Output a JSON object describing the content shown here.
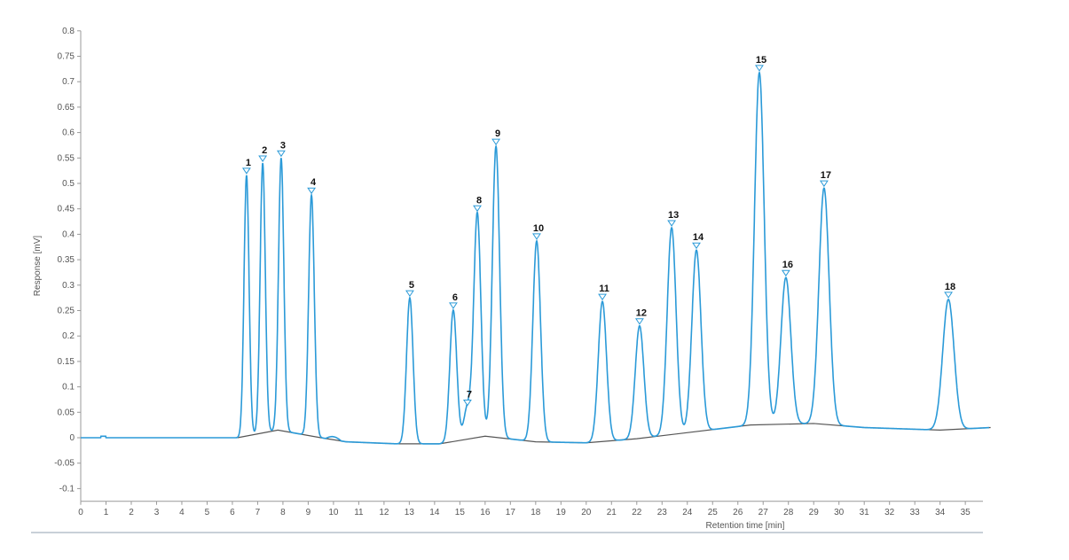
{
  "chart_data": {
    "type": "line",
    "title": "",
    "xlabel": "Retention time [min]",
    "ylabel": "Response [mV]",
    "xlim": [
      0,
      36
    ],
    "ylim": [
      -0.125,
      0.8
    ],
    "x_ticks": [
      0,
      1,
      2,
      3,
      4,
      5,
      6,
      7,
      8,
      9,
      10,
      11,
      12,
      13,
      14,
      15,
      16,
      17,
      18,
      19,
      20,
      21,
      22,
      23,
      24,
      25,
      26,
      27,
      28,
      29,
      30,
      31,
      32,
      33,
      34,
      35,
      36
    ],
    "y_ticks": [
      -0.1,
      -0.05,
      0,
      0.05,
      0.1,
      0.15,
      0.2,
      0.25,
      0.3,
      0.35,
      0.4,
      0.45,
      0.5,
      0.55,
      0.6,
      0.65,
      0.7,
      0.75,
      0.8
    ],
    "grid": false,
    "colors": {
      "signal": "#2b9ad8",
      "baseline": "#555555",
      "marker": "#2b9ad8"
    },
    "peaks": [
      {
        "label": "1",
        "retention_time": 6.56,
        "height": 0.516
      },
      {
        "label": "2",
        "retention_time": 7.2,
        "height": 0.54
      },
      {
        "label": "3",
        "retention_time": 7.93,
        "height": 0.55
      },
      {
        "label": "4",
        "retention_time": 9.13,
        "height": 0.477
      },
      {
        "label": "5",
        "retention_time": 13.02,
        "height": 0.275
      },
      {
        "label": "6",
        "retention_time": 14.74,
        "height": 0.251
      },
      {
        "label": "7",
        "retention_time": 15.3,
        "height": 0.06
      },
      {
        "label": "8",
        "retention_time": 15.69,
        "height": 0.442
      },
      {
        "label": "9",
        "retention_time": 16.43,
        "height": 0.573
      },
      {
        "label": "10",
        "retention_time": 18.04,
        "height": 0.387
      },
      {
        "label": "11",
        "retention_time": 20.64,
        "height": 0.268
      },
      {
        "label": "12",
        "retention_time": 22.11,
        "height": 0.22
      },
      {
        "label": "13",
        "retention_time": 23.38,
        "height": 0.413
      },
      {
        "label": "14",
        "retention_time": 24.36,
        "height": 0.369
      },
      {
        "label": "15",
        "retention_time": 26.85,
        "height": 0.718
      },
      {
        "label": "16",
        "retention_time": 27.9,
        "height": 0.315
      },
      {
        "label": "17",
        "retention_time": 29.41,
        "height": 0.491
      },
      {
        "label": "18",
        "retention_time": 34.33,
        "height": 0.272
      }
    ],
    "baseline": [
      [
        6.2,
        0
      ],
      [
        7.8,
        0.015
      ],
      [
        9.5,
        0
      ],
      [
        10.5,
        -0.008
      ],
      [
        12.5,
        -0.012
      ],
      [
        14.2,
        -0.012
      ],
      [
        16,
        0.003
      ],
      [
        18,
        -0.008
      ],
      [
        20,
        -0.01
      ],
      [
        22,
        -0.002
      ],
      [
        26.5,
        0.025
      ],
      [
        29,
        0.028
      ],
      [
        31,
        0.02
      ],
      [
        34,
        0.015
      ],
      [
        36,
        0.02
      ]
    ]
  }
}
